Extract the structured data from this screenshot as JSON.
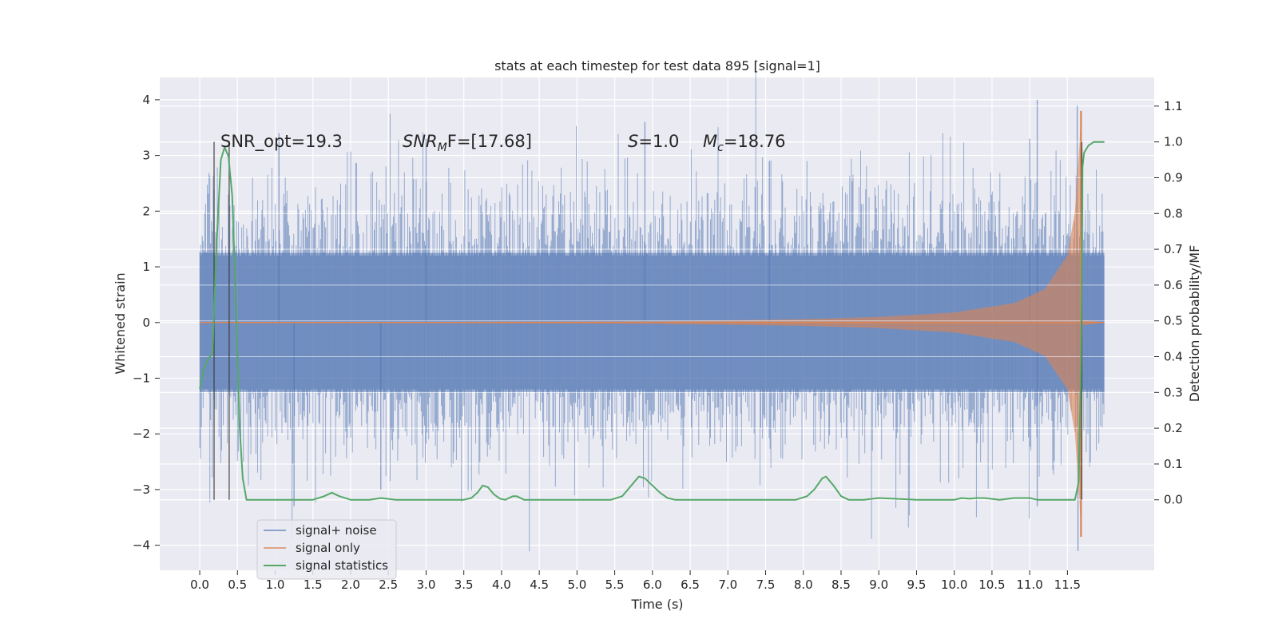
{
  "chart_data": {
    "type": "line",
    "title": "stats at each timestep for test data 895 [signal=1]",
    "xlabel": "Time (s)",
    "ylabel_left": "Whitened strain",
    "ylabel_right": "Detection probability/MF",
    "xlim": [
      -0.53,
      12.65
    ],
    "ylim_left": [
      -4.45,
      4.4
    ],
    "ylim_right": [
      -0.197,
      1.18
    ],
    "x_ticks": [
      "0.0",
      "0.5",
      "1.0",
      "1.5",
      "2.0",
      "2.5",
      "3.0",
      "3.5",
      "4.0",
      "4.5",
      "5.0",
      "5.5",
      "6.0",
      "6.5",
      "7.0",
      "7.5",
      "8.0",
      "8.5",
      "9.0",
      "9.5",
      "10.0",
      "10.5",
      "11.0",
      "11.5"
    ],
    "y_ticks_left": [
      "4",
      "3",
      "2",
      "1",
      "0",
      "−1",
      "−2",
      "−3",
      "−4"
    ],
    "y_ticks_right": [
      "1.1",
      "1.0",
      "0.9",
      "0.8",
      "0.7",
      "0.6",
      "0.5",
      "0.4",
      "0.3",
      "0.2",
      "0.1",
      "0.0"
    ],
    "grid": true,
    "background": "#eaeaf2",
    "annotations": {
      "snr_opt": "SNR_opt=19.3",
      "snr_mf_label": "SNR",
      "snr_mf_sub": "M",
      "snr_mf_value": "F=[17.68]",
      "s_label": "S",
      "s_value": "=1.0",
      "mc_label": "M",
      "mc_sub": "c",
      "mc_value": "=18.76"
    },
    "vlines": [
      0.19,
      0.39,
      11.69
    ],
    "series": [
      {
        "name": "signal+ noise",
        "color": "#4c72b0",
        "style": "dense noise band",
        "x_range": [
          0.0,
          11.99
        ],
        "typical_envelope": [
          -1.9,
          2.0
        ],
        "peak_max": 4.0,
        "peak_min": -4.1
      },
      {
        "name": "signal only",
        "color": "#dd8452",
        "style": "chirp",
        "x_range": [
          0.0,
          11.99
        ],
        "amplitude_points": [
          [
            0.0,
            0.0
          ],
          [
            6.0,
            0.02
          ],
          [
            8.0,
            0.06
          ],
          [
            9.0,
            0.1
          ],
          [
            10.0,
            0.18
          ],
          [
            10.8,
            0.35
          ],
          [
            11.2,
            0.6
          ],
          [
            11.5,
            1.2
          ],
          [
            11.6,
            2.0
          ],
          [
            11.66,
            3.2
          ],
          [
            11.68,
            3.8
          ],
          [
            11.7,
            0.05
          ],
          [
            11.99,
            0.0
          ]
        ]
      },
      {
        "name": "signal statistics",
        "color": "#55a868",
        "axis": "right",
        "x": [
          0.0,
          0.05,
          0.1,
          0.17,
          0.22,
          0.28,
          0.33,
          0.38,
          0.43,
          0.48,
          0.53,
          0.57,
          0.62,
          0.7,
          1.0,
          1.5,
          1.65,
          1.75,
          1.85,
          2.0,
          2.25,
          2.4,
          2.6,
          3.0,
          3.5,
          3.6,
          3.68,
          3.75,
          3.82,
          3.9,
          3.98,
          4.05,
          4.15,
          4.2,
          4.3,
          4.4,
          5.0,
          5.45,
          5.6,
          5.72,
          5.82,
          5.9,
          6.0,
          6.1,
          6.2,
          6.3,
          6.5,
          7.5,
          7.9,
          8.05,
          8.15,
          8.25,
          8.3,
          8.4,
          8.5,
          8.6,
          8.8,
          9.0,
          9.5,
          10.0,
          10.1,
          10.2,
          10.3,
          10.4,
          10.6,
          10.8,
          11.0,
          11.1,
          11.3,
          11.6,
          11.65,
          11.68,
          11.7,
          11.72,
          11.78,
          11.85,
          11.93,
          11.99
        ],
        "y": [
          0.31,
          0.36,
          0.39,
          0.41,
          0.7,
          0.95,
          0.985,
          0.96,
          0.85,
          0.55,
          0.2,
          0.06,
          0.0,
          0.0,
          0.0,
          0.0,
          0.01,
          0.02,
          0.01,
          0.0,
          0.0,
          0.005,
          0.0,
          0.0,
          0.0,
          0.005,
          0.02,
          0.04,
          0.035,
          0.015,
          0.003,
          0.0,
          0.01,
          0.01,
          0.0,
          0.0,
          0.0,
          0.0,
          0.01,
          0.04,
          0.065,
          0.06,
          0.04,
          0.02,
          0.005,
          0.0,
          0.0,
          0.0,
          0.0,
          0.01,
          0.03,
          0.06,
          0.065,
          0.04,
          0.01,
          0.0,
          0.0,
          0.005,
          0.0,
          0.0,
          0.005,
          0.003,
          0.005,
          0.005,
          0.0,
          0.005,
          0.005,
          0.0,
          0.0,
          0.0,
          0.05,
          0.4,
          0.93,
          0.97,
          0.99,
          1.0,
          1.0,
          1.0
        ]
      }
    ],
    "legend": {
      "placement": "lower-left",
      "entries": [
        "signal+ noise",
        "signal only",
        "signal statistics"
      ]
    }
  }
}
